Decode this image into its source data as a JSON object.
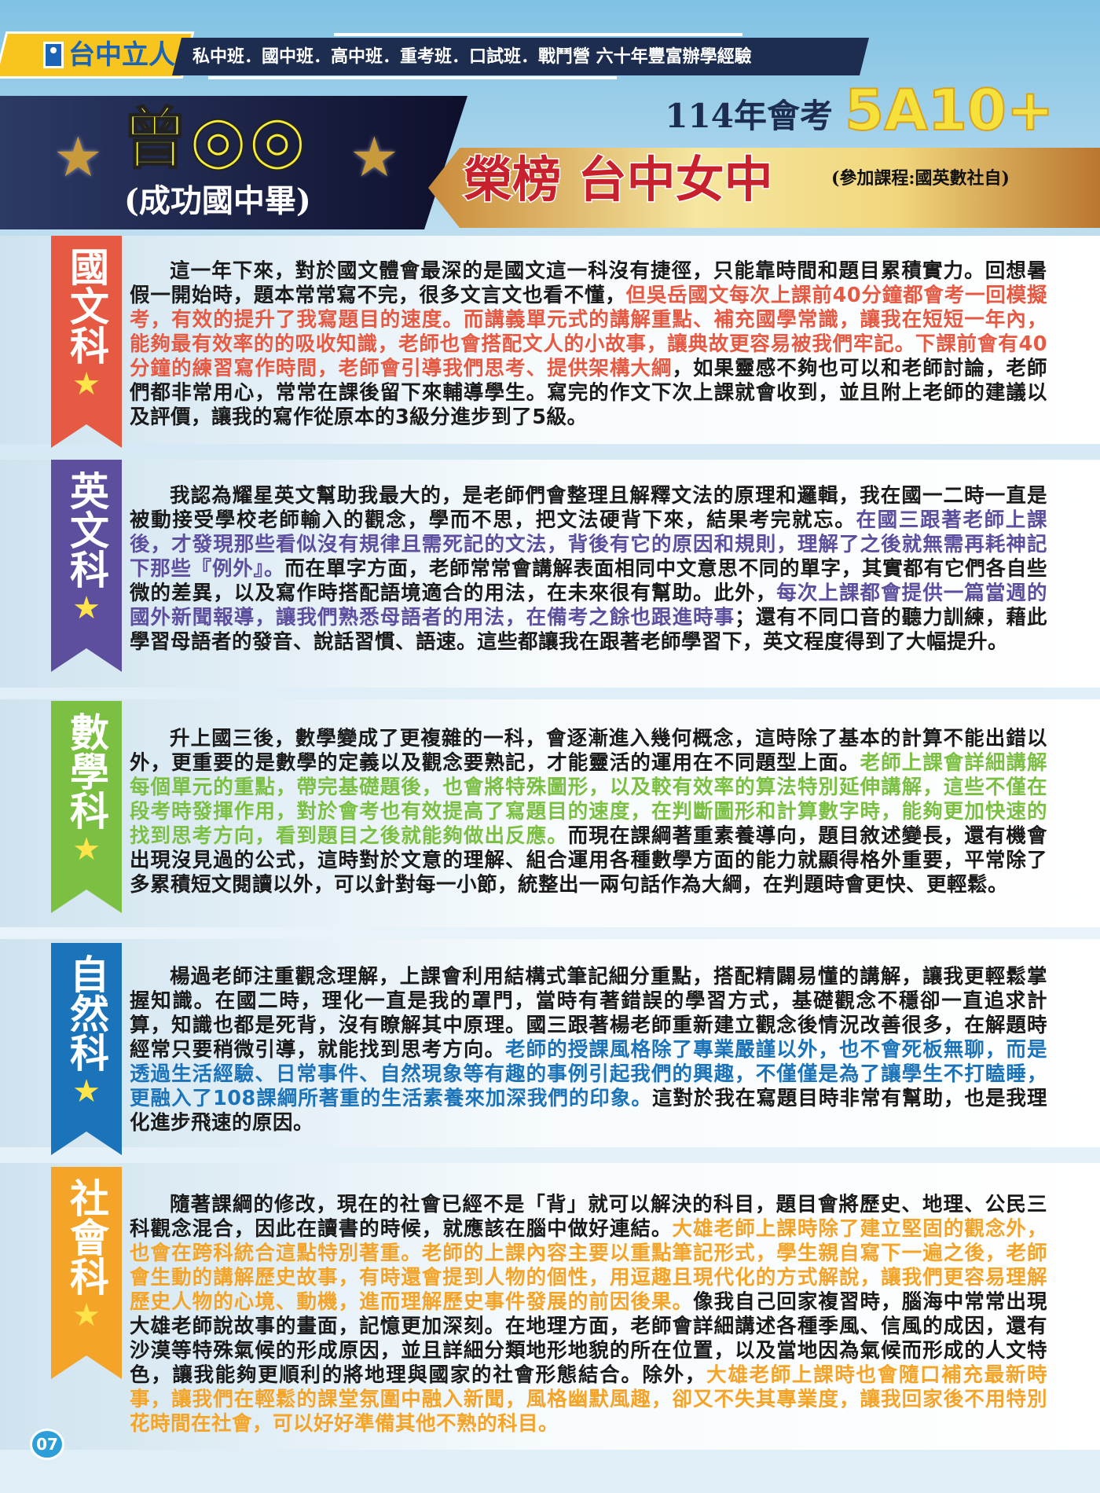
{
  "header": {
    "brand": "台中立人",
    "slogan": "私中班．國中班．高中班．重考班．口試班．戰鬥營 六十年豐富辦學經驗",
    "student_name": "曾◎◎",
    "school": "(成功國中畢)",
    "exam": "114年會考",
    "score": "5A10+",
    "honor": "榮榜 台中女中",
    "courses": "(參加課程:國英數社自)"
  },
  "colors": {
    "chinese": "#e65a43",
    "english": "#5d4f9e",
    "math": "#7cc043",
    "science": "#1b73b9",
    "social": "#f4a428",
    "navy": "#1c2d4f"
  },
  "sections": [
    {
      "label": "國文科",
      "star": "★",
      "segments": [
        {
          "t": "這一年下來，對於國文體會最深的是國文這一科沒有捷徑，只能靠時間和題目累積實力。回想暑假一開始時，題本常常寫不完，很多文言文也看不懂，",
          "hl": false
        },
        {
          "t": "但吳岳國文每次上課前40分鐘都會考一回模擬考，有效的提升了我寫題目的速度。而講義單元式的講解重點、補充國學常識，讓我在短短一年內，能夠最有效率的的吸收知識，老師也會搭配文人的小故事，讓典故更容易被我們牢記。下課前會有40分鐘的練習寫作時間，老師會引導我們思考、提供架構大綱",
          "hl": true
        },
        {
          "t": "，如果靈感不夠也可以和老師討論，老師們都非常用心，常常在課後留下來輔導學生。寫完的作文下次上課就會收到，並且附上老師的建議以及評價，讓我的寫作從原本的3級分進步到了5級。",
          "hl": false
        }
      ]
    },
    {
      "label": "英文科",
      "star": "★",
      "segments": [
        {
          "t": "我認為耀星英文幫助我最大的，是老師們會整理且解釋文法的原理和邏輯，我在國一二時一直是被動接受學校老師輸入的觀念，學而不思，把文法硬背下來，結果考完就忘。",
          "hl": false
        },
        {
          "t": "在國三跟著老師上課後，才發現那些看似沒有規律且需死記的文法，背後有它的原因和規則，理解了之後就無需再耗神記下那些『例外』。",
          "hl": true
        },
        {
          "t": "而在單字方面，老師常常會講解表面相同中文意思不同的單字，其實都有它們各自些微的差異，以及寫作時搭配語境適合的用法，在未來很有幫助。此外，",
          "hl": false
        },
        {
          "t": "每次上課都會提供一篇當週的國外新聞報導，讓我們熟悉母語者的用法，在備考之餘也跟進時事",
          "hl": true
        },
        {
          "t": "；還有不同口音的聽力訓練，藉此學習母語者的發音、說話習慣、語速。這些都讓我在跟著老師學習下，英文程度得到了大幅提升。",
          "hl": false
        }
      ]
    },
    {
      "label": "數學科",
      "star": "★",
      "segments": [
        {
          "t": "升上國三後，數學變成了更複雜的一科，會逐漸進入幾何概念，這時除了基本的計算不能出錯以外，更重要的是數學的定義以及觀念要熟記，才能靈活的運用在不同題型上面。",
          "hl": false
        },
        {
          "t": "老師上課會詳細講解每個單元的重點，帶完基礎題後，也會將特殊圖形，以及較有效率的算法特別延伸講解，這些不僅在段考時發揮作用，對於會考也有效提高了寫題目的速度，在判斷圖形和計算數字時，能夠更加快速的找到思考方向，看到題目之後就能夠做出反應。",
          "hl": true
        },
        {
          "t": "而現在課綱著重素養導向，題目敘述變長，還有機會出現沒見過的公式，這時對於文意的理解、組合運用各種數學方面的能力就顯得格外重要，平常除了多累積短文閱讀以外，可以針對每一小節，統整出一兩句話作為大綱，在判題時會更快、更輕鬆。",
          "hl": false
        }
      ]
    },
    {
      "label": "自然科",
      "star": "★",
      "segments": [
        {
          "t": "楊過老師注重觀念理解，上課會利用結構式筆記細分重點，搭配精闢易懂的講解，讓我更輕鬆掌握知識。在國二時，理化一直是我的罩門，當時有著錯誤的學習方式，基礎觀念不穩卻一直追求計算，知識也都是死背，沒有瞭解其中原理。國三跟著楊老師重新建立觀念後情況改善很多，在解題時經常只要稍微引導，就能找到思考方向。",
          "hl": false
        },
        {
          "t": "老師的授課風格除了專業嚴謹以外，也不會死板無聊，而是透過生活經驗、日常事件、自然現象等有趣的事例引起我們的興趣，不僅僅是為了讓學生不打瞌睡，更融入了108課綱所著重的生活素養來加深我們的印象。",
          "hl": true
        },
        {
          "t": "這對於我在寫題目時非常有幫助，也是我理化進步飛速的原因。",
          "hl": false
        }
      ]
    },
    {
      "label": "社會科",
      "star": "★",
      "segments": [
        {
          "t": "隨著課綱的修改，現在的社會已經不是「背」就可以解決的科目，題目會將歷史、地理、公民三科觀念混合，因此在讀書的時候，就應該在腦中做好連結。",
          "hl": false
        },
        {
          "t": "大雄老師上課時除了建立堅固的觀念外，也會在跨科統合這點特別著重。老師的上課內容主要以重點筆記形式，學生親自寫下一遍之後，老師會生動的講解歷史故事，有時還會提到人物的個性，用逗趣且現代化的方式解說，讓我們更容易理解歷史人物的心境、動機，進而理解歷史事件發展的前因後果。",
          "hl": true
        },
        {
          "t": "像我自己回家複習時，腦海中常常出現大雄老師說故事的畫面，記憶更加深刻。在地理方面，老師會詳細講述各種季風、信風的成因，還有沙漠等特殊氣候的形成原因，並且詳細分類地形地貌的所在位置，以及當地因為氣候而形成的人文特色，讓我能夠更順利的將地理與國家的社會形態結合。除外，",
          "hl": false
        },
        {
          "t": "大雄老師上課時也會隨口補充最新時事，讓我們在輕鬆的課堂氛圍中融入新聞，風格幽默風趣，卻又不失其專業度，讓我回家後不用特別花時間在社會，可以好好準備其他不熟的科目。",
          "hl": true
        }
      ]
    }
  ],
  "page_number": "07"
}
